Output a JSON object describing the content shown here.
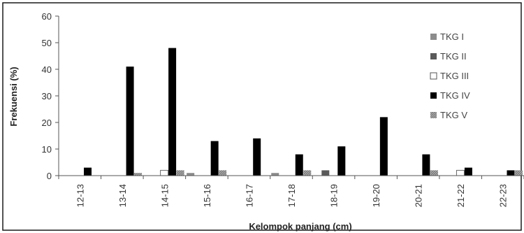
{
  "chart_data": {
    "type": "bar",
    "title": "",
    "xlabel": "Kelompok panjang (cm)",
    "ylabel": "Frekuensi (%)",
    "ylim": [
      0,
      60
    ],
    "yticks": [
      0,
      10,
      20,
      30,
      40,
      50,
      60
    ],
    "grid": false,
    "legend_position": "right",
    "categories": [
      "12-13",
      "13-14",
      "14-15",
      "15-16",
      "16-17",
      "17-18",
      "18-19",
      "19-20",
      "20-21",
      "21-22",
      "22-23"
    ],
    "series": [
      {
        "name": "TKG I",
        "color": "#8c8c8c",
        "style": "solid",
        "values": [
          0,
          0,
          0,
          1,
          0,
          1,
          0,
          0,
          0,
          0,
          0
        ]
      },
      {
        "name": "TKG II",
        "color": "#5a5a5a",
        "style": "solid",
        "values": [
          0,
          0,
          0,
          0,
          0,
          0,
          2,
          0,
          0,
          0,
          0
        ]
      },
      {
        "name": "TKG III",
        "color": "#ffffff",
        "style": "outline",
        "values": [
          0,
          0,
          2,
          0,
          0,
          0,
          0,
          0,
          0,
          2,
          0
        ]
      },
      {
        "name": "TKG IV",
        "color": "#000000",
        "style": "solid",
        "values": [
          3,
          41,
          48,
          13,
          14,
          8,
          11,
          22,
          8,
          3,
          2
        ]
      },
      {
        "name": "TKG V",
        "color": "#8a8a8a",
        "style": "hatched",
        "values": [
          0,
          1,
          2,
          2,
          0,
          2,
          0,
          0,
          2,
          0,
          2
        ]
      }
    ]
  }
}
